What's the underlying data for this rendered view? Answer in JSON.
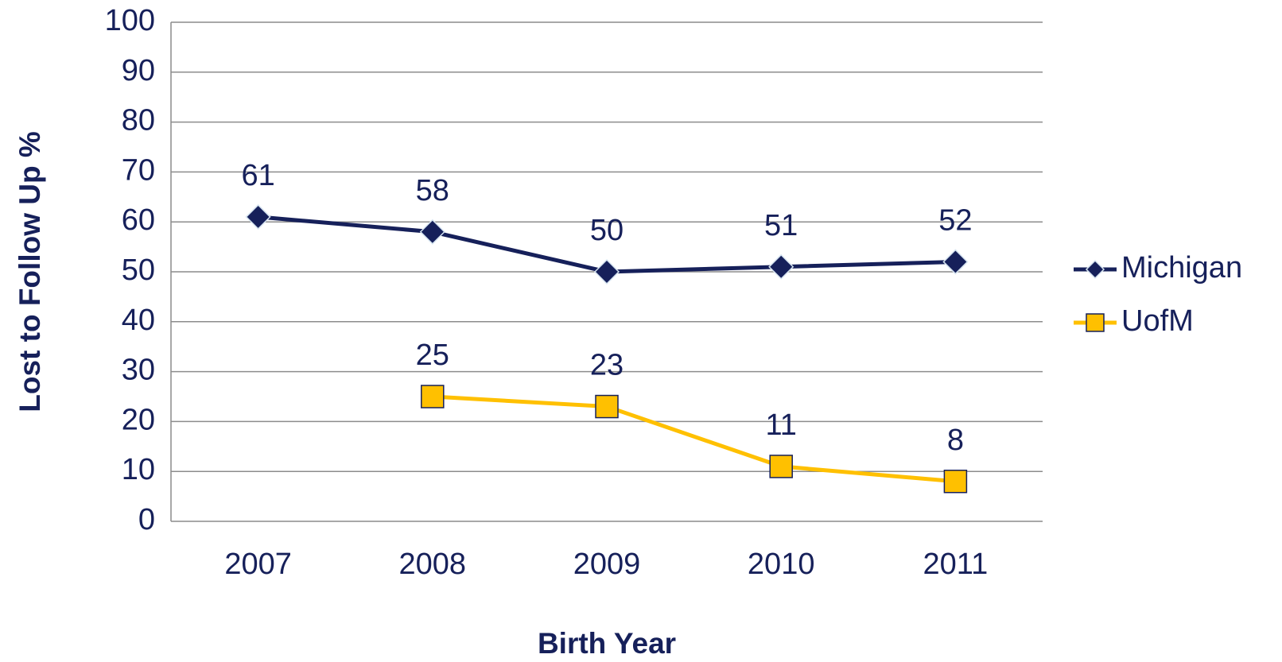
{
  "chart_data": {
    "type": "line",
    "x_label": "Birth Year",
    "y_label": "Lost to Follow Up %",
    "categories": [
      "2007",
      "2008",
      "2009",
      "2010",
      "2011"
    ],
    "series": [
      {
        "name": "Michigan",
        "color": "#16205a",
        "marker": "diamond",
        "values": [
          61,
          58,
          50,
          51,
          52
        ]
      },
      {
        "name": "UofM",
        "color": "#ffc000",
        "marker": "square",
        "values": [
          null,
          25,
          23,
          11,
          8
        ]
      }
    ],
    "ylim": [
      0,
      100
    ],
    "yticks": [
      0,
      10,
      20,
      30,
      40,
      50,
      60,
      70,
      80,
      90,
      100
    ],
    "grid": true,
    "legend": "right"
  }
}
